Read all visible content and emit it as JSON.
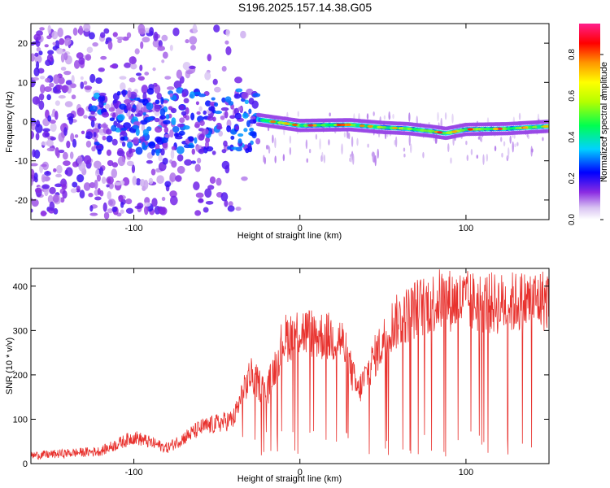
{
  "title": "S196.2025.157.14.38.G05",
  "chart_data": [
    {
      "type": "heatmap",
      "xlabel": "Height of straight line (km)",
      "ylabel": "Frequency (Hz)",
      "xlim": [
        -162,
        150
      ],
      "ylim": [
        -25,
        25
      ],
      "x_ticks": [
        -100,
        0,
        100
      ],
      "x_tick_labels": [
        "-100",
        "0",
        "100"
      ],
      "y_ticks": [
        -20,
        -10,
        0,
        10,
        20
      ],
      "y_tick_labels": [
        "-20",
        "-10",
        "0",
        "10",
        "20"
      ],
      "grid": false,
      "ridge": [
        {
          "x": -25,
          "f": 0.5
        },
        {
          "x": 0,
          "f": -1.0
        },
        {
          "x": 30,
          "f": -0.8
        },
        {
          "x": 50,
          "f": -1.5
        },
        {
          "x": 65,
          "f": -1.8
        },
        {
          "x": 80,
          "f": -2.5
        },
        {
          "x": 88,
          "f": -3.0
        },
        {
          "x": 100,
          "f": -2.0
        },
        {
          "x": 125,
          "f": -1.8
        },
        {
          "x": 150,
          "f": -1.2
        }
      ],
      "colorbar": {
        "label": "Normalized spectral amplitude",
        "range": [
          0,
          0.95
        ],
        "ticks": [
          0.0,
          0.2,
          0.4,
          0.6,
          0.8
        ],
        "tick_labels": [
          "0.0",
          "0.2",
          "0.4",
          "0.6",
          "0.8"
        ]
      }
    },
    {
      "type": "line",
      "xlabel": "Height of straight line (km)",
      "ylabel": "SNR (10 * v/v)",
      "xlim": [
        -162,
        150
      ],
      "ylim": [
        0,
        440
      ],
      "x_ticks": [
        -100,
        0,
        100
      ],
      "x_tick_labels": [
        "-100",
        "0",
        "100"
      ],
      "y_ticks": [
        0,
        100,
        200,
        300,
        400
      ],
      "y_tick_labels": [
        "0",
        "100",
        "200",
        "300",
        "400"
      ],
      "grid": false,
      "color": "#e8312d",
      "trend": [
        {
          "x": -162,
          "y": 18
        },
        {
          "x": -120,
          "y": 28
        },
        {
          "x": -100,
          "y": 60
        },
        {
          "x": -80,
          "y": 35
        },
        {
          "x": -60,
          "y": 80
        },
        {
          "x": -40,
          "y": 100
        },
        {
          "x": -30,
          "y": 200
        },
        {
          "x": -20,
          "y": 160
        },
        {
          "x": -10,
          "y": 280
        },
        {
          "x": 0,
          "y": 300
        },
        {
          "x": 10,
          "y": 290
        },
        {
          "x": 25,
          "y": 280
        },
        {
          "x": 35,
          "y": 160
        },
        {
          "x": 45,
          "y": 240
        },
        {
          "x": 55,
          "y": 310
        },
        {
          "x": 70,
          "y": 350
        },
        {
          "x": 85,
          "y": 370
        },
        {
          "x": 100,
          "y": 365
        },
        {
          "x": 120,
          "y": 360
        },
        {
          "x": 150,
          "y": 370
        }
      ]
    }
  ]
}
